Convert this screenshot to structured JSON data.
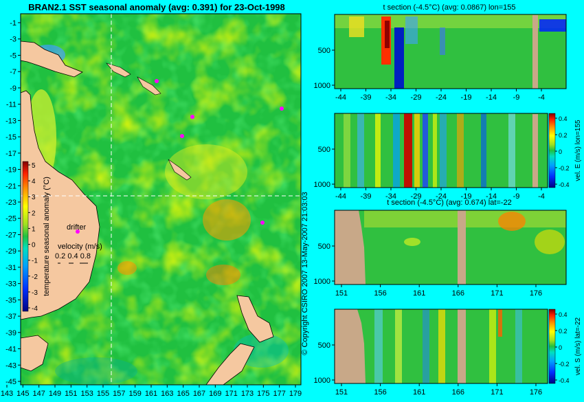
{
  "page": {
    "copyright": "© Copyright CSIRO 2007 13-May-2007 21:03:03"
  },
  "colors": {
    "background": "#00ffff",
    "land": "#f5c8a0",
    "mask": "#c8a888",
    "ocean_base": "#20c040"
  },
  "chart_data": [
    {
      "id": "sst-map",
      "type": "heatmap",
      "title": "BRAN2.1 SST seasonal anomaly (avg: 0.391) for 23-Oct-1998",
      "x_ticks": [
        "143",
        "145",
        "147",
        "149",
        "151",
        "153",
        "155",
        "157",
        "159",
        "161",
        "163",
        "165",
        "167",
        "169",
        "171",
        "173",
        "175",
        "177",
        "179"
      ],
      "y_ticks": [
        "-1",
        "-3",
        "-5",
        "-7",
        "-9",
        "-11",
        "-13",
        "-15",
        "-17",
        "-19",
        "-21",
        "-23",
        "-25",
        "-27",
        "-29",
        "-31",
        "-33",
        "-35",
        "-37",
        "-39",
        "-41",
        "-43",
        "-45"
      ],
      "xlim": [
        143,
        180
      ],
      "ylim": [
        -45,
        0
      ],
      "crosshair": {
        "lon": 155,
        "lat": -22
      },
      "colorbar": {
        "label": "temperature seasonal anomaly (°C)",
        "ticks": [
          "5",
          "4",
          "3",
          "2",
          "1",
          "0",
          "-1",
          "-2",
          "-3",
          "-4"
        ],
        "range": [
          -4,
          5
        ]
      },
      "annotations": {
        "drifter": "drifter",
        "velocity_label": "velocity (m/s)",
        "velocity_scale": "0.2 0.4 0.8"
      }
    },
    {
      "id": "t-section-lon",
      "type": "heatmap",
      "title": "t section (-4.5°C) (avg: 0.0867) lon=155",
      "x_ticks": [
        "-44",
        "-39",
        "-34",
        "-29",
        "-24",
        "-19",
        "-14",
        "-9",
        "-4"
      ],
      "y_ticks": [
        "500",
        "1000"
      ],
      "xlim": [
        -45,
        -1
      ],
      "ylim": [
        1050,
        0
      ]
    },
    {
      "id": "vel-e-section",
      "type": "heatmap",
      "title": "",
      "x_ticks": [
        "-44",
        "-39",
        "-34",
        "-29",
        "-24",
        "-19",
        "-14",
        "-9",
        "-4"
      ],
      "y_ticks": [
        "500",
        "1000"
      ],
      "xlim": [
        -45,
        -1
      ],
      "ylim": [
        1050,
        0
      ],
      "colorbar": {
        "label": "vel. E (m/s) lon=155",
        "ticks": [
          "0.4",
          "0.2",
          "0",
          "-0.2",
          "-0.4"
        ],
        "range": [
          -0.4,
          0.4
        ]
      }
    },
    {
      "id": "t-section-lat",
      "type": "heatmap",
      "title": "t section (-4.5°C) (avg: 0.674) lat=-22",
      "x_ticks": [
        "151",
        "156",
        "161",
        "166",
        "171",
        "176"
      ],
      "y_ticks": [
        "500",
        "1000"
      ],
      "xlim": [
        150,
        180
      ],
      "ylim": [
        1050,
        0
      ]
    },
    {
      "id": "vel-s-section",
      "type": "heatmap",
      "title": "",
      "x_ticks": [
        "151",
        "156",
        "161",
        "166",
        "171",
        "176"
      ],
      "y_ticks": [
        "500",
        "1000"
      ],
      "xlim": [
        150,
        180
      ],
      "ylim": [
        1050,
        0
      ],
      "colorbar": {
        "label": "vel. S (m/s) lat=-22",
        "ticks": [
          "0.4",
          "0.2",
          "0",
          "-0.2",
          "-0.4"
        ],
        "range": [
          -0.4,
          0.4
        ]
      }
    }
  ]
}
